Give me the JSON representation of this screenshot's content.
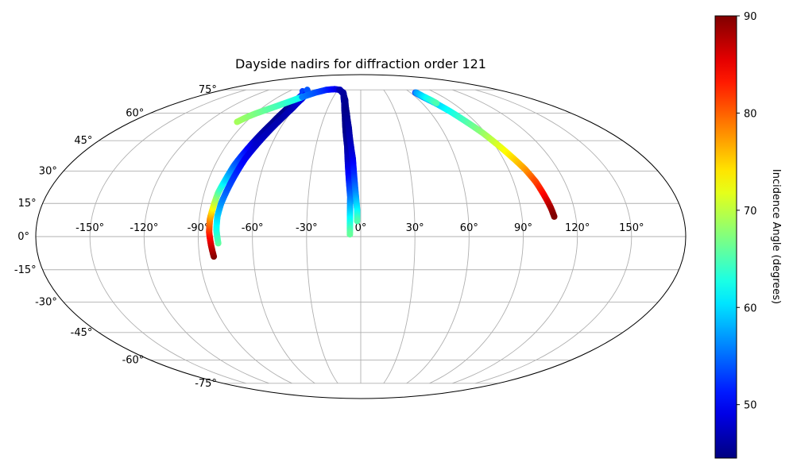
{
  "chart_data": {
    "type": "scatter",
    "projection": "mollweide",
    "title": "Dayside nadirs for diffraction order 121",
    "xlabel": "",
    "ylabel": "",
    "grid": true,
    "lon_ticks": [
      -150,
      -120,
      -90,
      -60,
      -30,
      0,
      30,
      60,
      90,
      120,
      150
    ],
    "lon_tick_labels": [
      "-150°",
      "-120°",
      "-90°",
      "-60°",
      "-30°",
      "0°",
      "30°",
      "60°",
      "90°",
      "120°",
      "150°"
    ],
    "lat_ticks": [
      -75,
      -60,
      -45,
      -30,
      -15,
      0,
      15,
      30,
      45,
      60,
      75
    ],
    "lat_tick_labels": [
      "-75°",
      "-60°",
      "-45°",
      "-30°",
      "-15°",
      "0°",
      "15°",
      "30°",
      "45°",
      "60°",
      "75°"
    ],
    "colorbar": {
      "label": "Incidence Angle (degrees)",
      "colormap": "jet",
      "vmin": 44.5,
      "vmax": 90,
      "ticks": [
        50,
        60,
        70,
        80,
        90
      ],
      "tick_labels": [
        "50",
        "60",
        "70",
        "80",
        "90"
      ]
    },
    "series": [
      {
        "points": [
          {
            "lon": -82,
            "lat": -9,
            "c": 90
          },
          {
            "lon": -83,
            "lat": -4,
            "c": 87
          },
          {
            "lon": -84,
            "lat": 2,
            "c": 83
          },
          {
            "lon": -84,
            "lat": 8,
            "c": 78
          },
          {
            "lon": -83,
            "lat": 14,
            "c": 72
          },
          {
            "lon": -82,
            "lat": 20,
            "c": 66
          },
          {
            "lon": -80,
            "lat": 26,
            "c": 60
          },
          {
            "lon": -78,
            "lat": 33,
            "c": 55
          },
          {
            "lon": -75,
            "lat": 40,
            "c": 51
          },
          {
            "lon": -72,
            "lat": 47,
            "c": 47
          },
          {
            "lon": -69,
            "lat": 54,
            "c": 45.5
          },
          {
            "lon": -67,
            "lat": 61,
            "c": 45
          },
          {
            "lon": -66,
            "lat": 67,
            "c": 46
          },
          {
            "lon": -67,
            "lat": 72,
            "c": 50
          },
          {
            "lon": -73,
            "lat": 74,
            "c": 53
          }
        ]
      },
      {
        "points": [
          {
            "lon": -79,
            "lat": -3,
            "c": 66
          },
          {
            "lon": -80,
            "lat": 3,
            "c": 63
          },
          {
            "lon": -80,
            "lat": 9,
            "c": 60
          },
          {
            "lon": -79,
            "lat": 15,
            "c": 57
          },
          {
            "lon": -77,
            "lat": 22,
            "c": 54
          },
          {
            "lon": -75,
            "lat": 29,
            "c": 52
          },
          {
            "lon": -73,
            "lat": 36,
            "c": 50
          },
          {
            "lon": -70,
            "lat": 43,
            "c": 48
          },
          {
            "lon": -67,
            "lat": 50,
            "c": 47
          },
          {
            "lon": -64,
            "lat": 57,
            "c": 46.5
          },
          {
            "lon": -62,
            "lat": 63,
            "c": 47
          },
          {
            "lon": -62,
            "lat": 69,
            "c": 49
          },
          {
            "lon": -64,
            "lat": 73,
            "c": 51
          },
          {
            "lon": -70,
            "lat": 75,
            "c": 54
          }
        ]
      },
      {
        "points": [
          {
            "lon": -97,
            "lat": 55,
            "c": 69
          },
          {
            "lon": -93,
            "lat": 58,
            "c": 68
          },
          {
            "lon": -89,
            "lat": 60,
            "c": 67
          },
          {
            "lon": -84,
            "lat": 62,
            "c": 66
          },
          {
            "lon": -79,
            "lat": 64,
            "c": 65
          },
          {
            "lon": -74,
            "lat": 66,
            "c": 64
          },
          {
            "lon": -69,
            "lat": 68,
            "c": 63
          },
          {
            "lon": -64,
            "lat": 70,
            "c": 62
          }
        ]
      },
      {
        "points": [
          {
            "lon": -64,
            "lat": 70,
            "c": 56
          },
          {
            "lon": -55,
            "lat": 73,
            "c": 54
          },
          {
            "lon": -45,
            "lat": 75,
            "c": 52
          },
          {
            "lon": -35,
            "lat": 75.5,
            "c": 50
          },
          {
            "lon": -27,
            "lat": 75,
            "c": 48
          },
          {
            "lon": -20,
            "lat": 72,
            "c": 47
          },
          {
            "lon": -16,
            "lat": 66,
            "c": 46
          },
          {
            "lon": -13,
            "lat": 58,
            "c": 45
          },
          {
            "lon": -11,
            "lat": 50,
            "c": 45
          },
          {
            "lon": -9,
            "lat": 42,
            "c": 46
          },
          {
            "lon": -8,
            "lat": 34,
            "c": 48
          },
          {
            "lon": -7,
            "lat": 26,
            "c": 51
          },
          {
            "lon": -6,
            "lat": 18,
            "c": 55
          },
          {
            "lon": -6,
            "lat": 10,
            "c": 60
          },
          {
            "lon": -6,
            "lat": 1,
            "c": 66
          }
        ]
      },
      {
        "points": [
          {
            "lon": -28,
            "lat": 75,
            "c": 47
          },
          {
            "lon": -21,
            "lat": 73,
            "c": 46
          },
          {
            "lon": -16,
            "lat": 68,
            "c": 45.5
          },
          {
            "lon": -12,
            "lat": 60,
            "c": 45
          },
          {
            "lon": -9,
            "lat": 52,
            "c": 46
          },
          {
            "lon": -7,
            "lat": 44,
            "c": 47
          },
          {
            "lon": -5,
            "lat": 36,
            "c": 49
          },
          {
            "lon": -4,
            "lat": 28,
            "c": 52
          },
          {
            "lon": -3,
            "lat": 20,
            "c": 56
          },
          {
            "lon": -2,
            "lat": 12,
            "c": 61
          },
          {
            "lon": -2,
            "lat": 7,
            "c": 65
          }
        ]
      },
      {
        "points": [
          {
            "lon": 66,
            "lat": 73,
            "c": 53
          },
          {
            "lon": 68,
            "lat": 70,
            "c": 56
          },
          {
            "lon": 73,
            "lat": 66,
            "c": 59
          },
          {
            "lon": 78,
            "lat": 61,
            "c": 62
          },
          {
            "lon": 83,
            "lat": 55,
            "c": 65
          },
          {
            "lon": 88,
            "lat": 49,
            "c": 68
          },
          {
            "lon": 92,
            "lat": 43,
            "c": 71
          },
          {
            "lon": 96,
            "lat": 37,
            "c": 74
          },
          {
            "lon": 100,
            "lat": 31,
            "c": 77
          },
          {
            "lon": 103,
            "lat": 25,
            "c": 81
          },
          {
            "lon": 105,
            "lat": 19,
            "c": 84
          },
          {
            "lon": 107,
            "lat": 13,
            "c": 88
          },
          {
            "lon": 108,
            "lat": 9,
            "c": 90
          }
        ]
      },
      {
        "points": [
          {
            "lon": 67,
            "lat": 73,
            "c": 57
          },
          {
            "lon": 69,
            "lat": 70.5,
            "c": 60
          },
          {
            "lon": 72,
            "lat": 68,
            "c": 63
          },
          {
            "lon": 74,
            "lat": 66,
            "c": 65
          }
        ]
      }
    ]
  }
}
